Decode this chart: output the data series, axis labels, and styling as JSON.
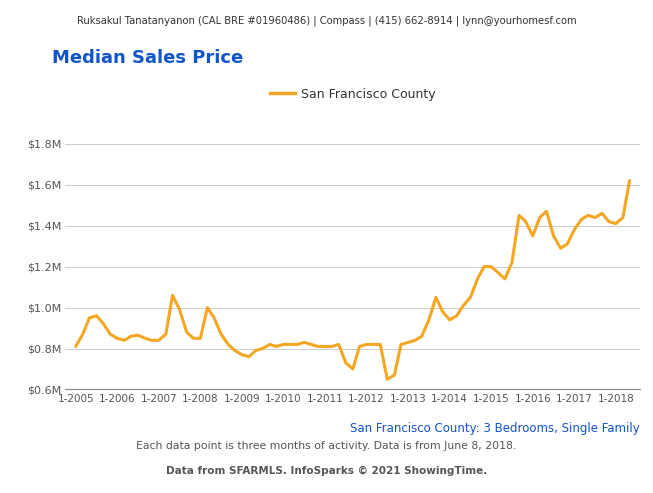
{
  "header_text": "Ruksakul Tanatanyanon (CAL BRE #01960486) | Compass | (415) 662-8914 | lynn@yourhomesf.com",
  "title": "Median Sales Price",
  "title_color": "#1155cc",
  "legend_label": "San Francisco County",
  "legend_color": "#F5A623",
  "subtitle1": "San Francisco County: 3 Bedrooms, Single Family",
  "subtitle1_color": "#1155cc",
  "subtitle2": "Each data point is three months of activity. Data is from June 8, 2018.",
  "footer": "Data from SFARMLS. InfoSparks © 2021 ShowingTime.",
  "line_color": "#F5A623",
  "line_width": 2.2,
  "background_color": "#ffffff",
  "plot_bg_color": "#ffffff",
  "header_bg_color": "#e0e0e0",
  "grid_color": "#cccccc",
  "tick_color": "#555555",
  "ylim": [
    600000,
    1900000
  ],
  "yticks": [
    600000,
    800000,
    1000000,
    1200000,
    1400000,
    1600000,
    1800000
  ],
  "ytick_labels": [
    "$0.6M",
    "$0.8M",
    "$1.0M",
    "$1.2M",
    "$1.4M",
    "$1.6M",
    "$1.8M"
  ],
  "xtick_years": [
    2005,
    2006,
    2007,
    2008,
    2009,
    2010,
    2011,
    2012,
    2013,
    2014,
    2015,
    2016,
    2017,
    2018
  ],
  "data_x": [
    2005.0,
    2005.17,
    2005.33,
    2005.5,
    2005.67,
    2005.83,
    2006.0,
    2006.17,
    2006.33,
    2006.5,
    2006.67,
    2006.83,
    2007.0,
    2007.17,
    2007.33,
    2007.5,
    2007.67,
    2007.83,
    2008.0,
    2008.17,
    2008.33,
    2008.5,
    2008.67,
    2008.83,
    2009.0,
    2009.17,
    2009.33,
    2009.5,
    2009.67,
    2009.83,
    2010.0,
    2010.17,
    2010.33,
    2010.5,
    2010.67,
    2010.83,
    2011.0,
    2011.17,
    2011.33,
    2011.5,
    2011.67,
    2011.83,
    2012.0,
    2012.17,
    2012.33,
    2012.5,
    2012.67,
    2012.83,
    2013.0,
    2013.17,
    2013.33,
    2013.5,
    2013.67,
    2013.83,
    2014.0,
    2014.17,
    2014.33,
    2014.5,
    2014.67,
    2014.83,
    2015.0,
    2015.17,
    2015.33,
    2015.5,
    2015.67,
    2015.83,
    2016.0,
    2016.17,
    2016.33,
    2016.5,
    2016.67,
    2016.83,
    2017.0,
    2017.17,
    2017.33,
    2017.5,
    2017.67,
    2017.83,
    2018.0,
    2018.17,
    2018.33
  ],
  "data_y": [
    810000,
    870000,
    950000,
    960000,
    920000,
    870000,
    850000,
    840000,
    860000,
    865000,
    850000,
    840000,
    840000,
    870000,
    1060000,
    990000,
    880000,
    850000,
    850000,
    1000000,
    950000,
    870000,
    820000,
    790000,
    770000,
    760000,
    790000,
    800000,
    820000,
    810000,
    820000,
    820000,
    820000,
    830000,
    820000,
    810000,
    810000,
    810000,
    820000,
    730000,
    700000,
    810000,
    820000,
    820000,
    820000,
    650000,
    670000,
    820000,
    830000,
    840000,
    860000,
    940000,
    1050000,
    980000,
    940000,
    960000,
    1010000,
    1050000,
    1140000,
    1200000,
    1200000,
    1170000,
    1140000,
    1220000,
    1450000,
    1420000,
    1350000,
    1440000,
    1470000,
    1350000,
    1290000,
    1310000,
    1380000,
    1430000,
    1450000,
    1440000,
    1460000,
    1420000,
    1410000,
    1440000,
    1620000
  ]
}
